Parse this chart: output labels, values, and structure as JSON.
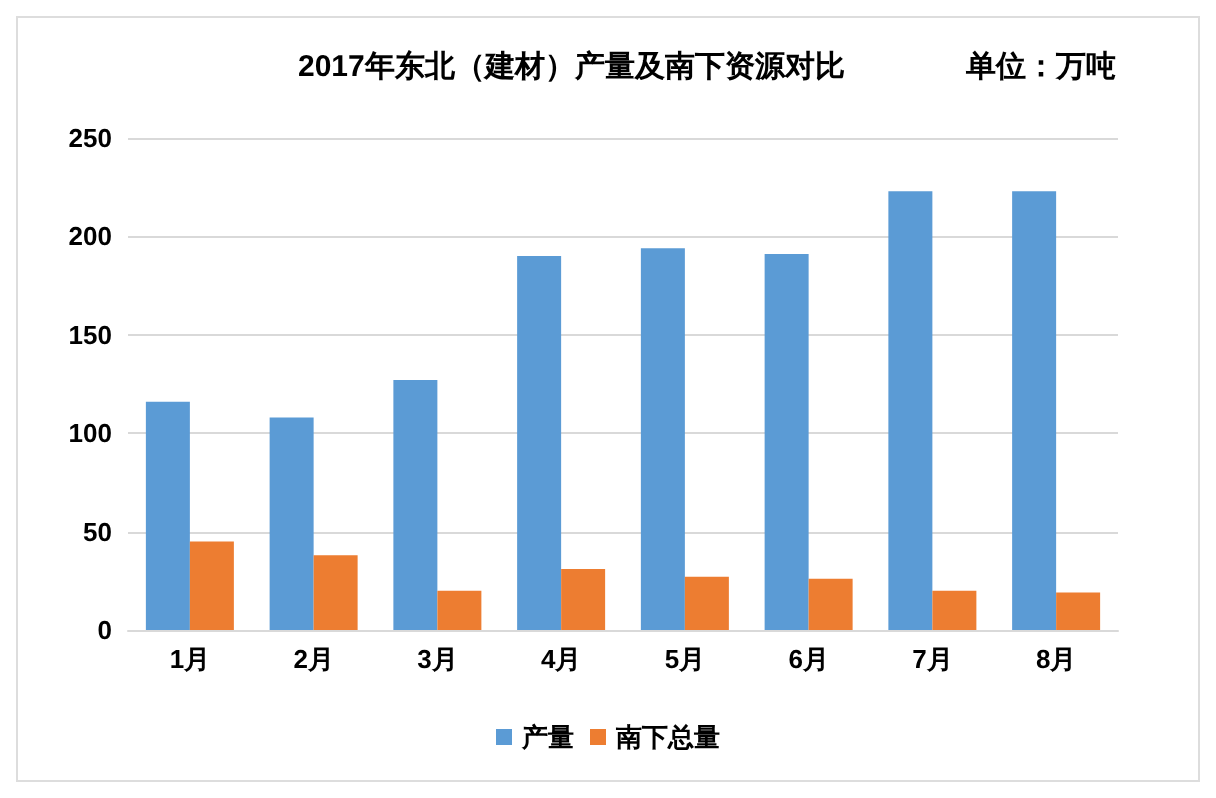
{
  "chart_data": {
    "type": "bar",
    "title": "2017年东北（建材）产量及南下资源对比",
    "subtitle": "单位：万吨",
    "categories": [
      "1月",
      "2月",
      "3月",
      "4月",
      "5月",
      "6月",
      "7月",
      "8月"
    ],
    "series": [
      {
        "name": "产量",
        "color": "#5b9bd5",
        "values": [
          116,
          108,
          127,
          190,
          194,
          191,
          223,
          223
        ]
      },
      {
        "name": "南下总量",
        "color": "#ed7d31",
        "values": [
          45,
          38,
          20,
          31,
          27,
          26,
          20,
          19
        ]
      }
    ],
    "ylim": [
      0,
      250
    ],
    "yticks": [
      0,
      50,
      100,
      150,
      200,
      250
    ],
    "grid": "y",
    "legend": "bottom"
  }
}
